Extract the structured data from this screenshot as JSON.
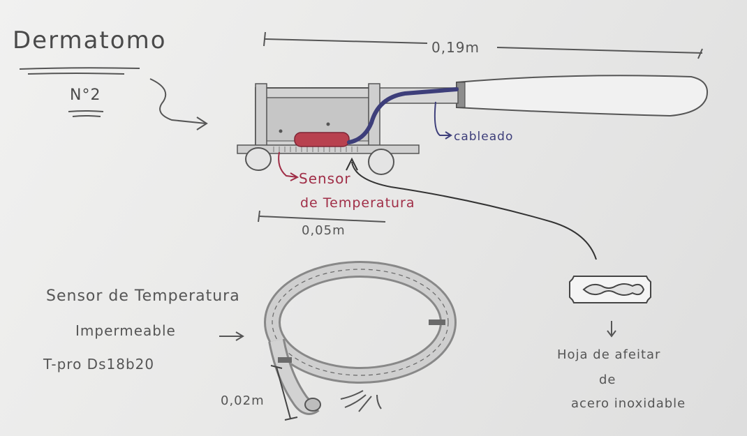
{
  "title": "Dermatomo",
  "subtitle": "N°2",
  "dimensions": {
    "overall_length": "0,19m",
    "base_length": "0,05m",
    "cable_diameter": "0,02m"
  },
  "labels": {
    "wiring": "cableado",
    "sensor_line1": "Sensor",
    "sensor_line2": "de Temperatura",
    "probe_line1": "Sensor de Temperatura",
    "probe_line2": "Impermeable",
    "probe_line3": "T-pro Ds18b20",
    "blade_line1": "Hoja de afeitar",
    "blade_line2": "de",
    "blade_line3": "acero inoxidable"
  },
  "colors": {
    "ink": "#555555",
    "wiring": "#3d3e7a",
    "sensor": "#a02e47",
    "sensor_fill": "#b8414f",
    "paper": "#ececeb"
  }
}
